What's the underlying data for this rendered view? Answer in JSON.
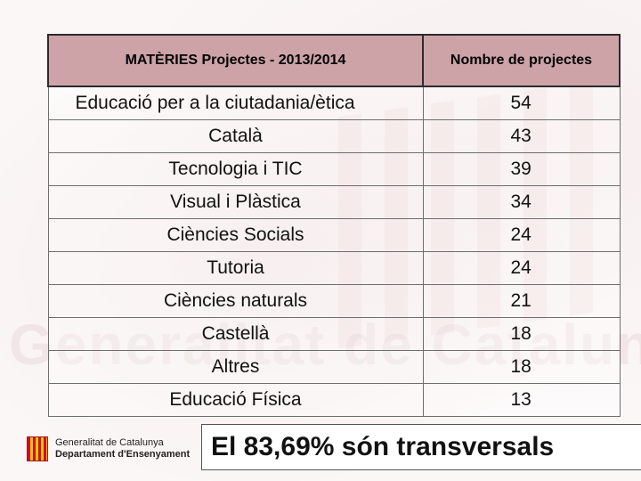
{
  "header": {
    "subject_col": "MATÈRIES  Projectes - 2013/2014",
    "count_col": "Nombre de projectes"
  },
  "rows": [
    {
      "subject": "Educació per a la ciutadania/ètica",
      "count": "54"
    },
    {
      "subject": "Català",
      "count": "43"
    },
    {
      "subject": "Tecnologia i TIC",
      "count": "39"
    },
    {
      "subject": "Visual i Plàstica",
      "count": "34"
    },
    {
      "subject": "Ciències Socials",
      "count": "24"
    },
    {
      "subject": "Tutoria",
      "count": "24"
    },
    {
      "subject": "Ciències naturals",
      "count": "21"
    },
    {
      "subject": "Castellà",
      "count": "18"
    },
    {
      "subject": "Altres",
      "count": "18"
    },
    {
      "subject": "Educació Física",
      "count": "13"
    }
  ],
  "footer": {
    "logo_line1": "Generalitat de Catalunya",
    "logo_line2": "Departament d'Ensenyament",
    "banner": "El 83,69%  són transversals"
  },
  "colors": {
    "header_bg": "#cda3a8",
    "logo_red": "#c8102e",
    "logo_yellow": "#f4c300"
  },
  "icons": [
    "generalitat-logo-icon"
  ]
}
